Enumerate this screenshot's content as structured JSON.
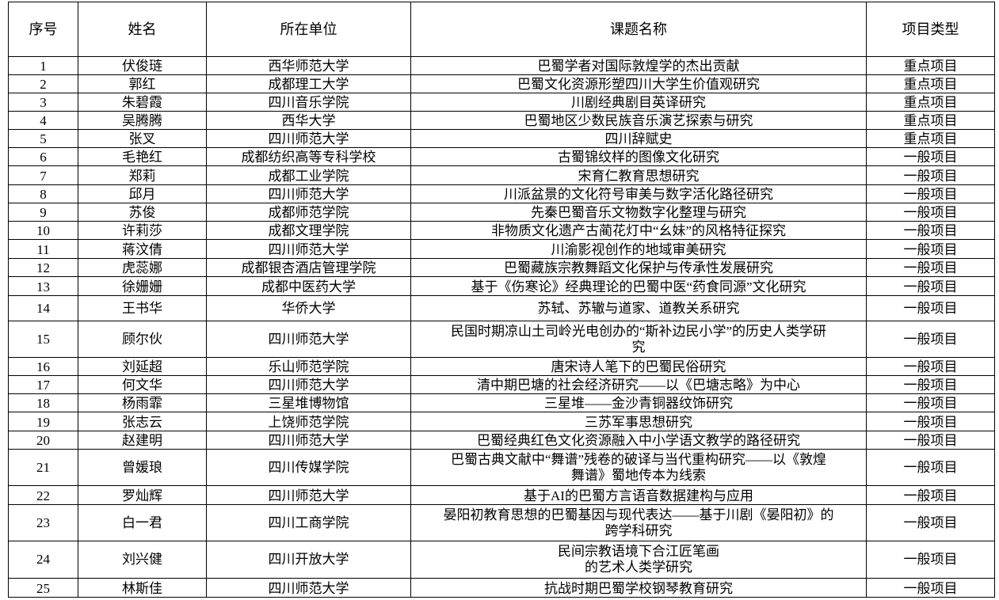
{
  "headers": {
    "no": "序号",
    "name": "姓名",
    "unit": "所在单位",
    "topic": "课题名称",
    "type": "项目类型"
  },
  "rows": [
    {
      "no": "1",
      "name": "伏俊琏",
      "unit": "西华师范大学",
      "topic": "巴蜀学者对国际敦煌学的杰出贡献",
      "type": "重点项目"
    },
    {
      "no": "2",
      "name": "郭红",
      "unit": "成都理工大学",
      "topic": "巴蜀文化资源形塑四川大学生价值观研究",
      "type": "重点项目"
    },
    {
      "no": "3",
      "name": "朱碧霞",
      "unit": "四川音乐学院",
      "topic": "川剧经典剧目英译研究",
      "type": "重点项目"
    },
    {
      "no": "4",
      "name": "吴腾腾",
      "unit": "西华大学",
      "topic": "巴蜀地区少数民族音乐演艺探索与研究",
      "type": "重点项目"
    },
    {
      "no": "5",
      "name": "张叉",
      "unit": "四川师范大学",
      "topic": "四川辞赋史",
      "type": "重点项目"
    },
    {
      "no": "6",
      "name": "毛艳红",
      "unit": "成都纺织高等专科学校",
      "topic": "古蜀锦纹样的图像文化研究",
      "type": "一般项目"
    },
    {
      "no": "7",
      "name": "郑莉",
      "unit": "成都工业学院",
      "topic": "宋育仁教育思想研究",
      "type": "一般项目"
    },
    {
      "no": "8",
      "name": "邱月",
      "unit": "四川师范大学",
      "topic": "川派盆景的文化符号审美与数字活化路径研究",
      "type": "一般项目"
    },
    {
      "no": "9",
      "name": "苏俊",
      "unit": "成都师范学院",
      "topic": "先秦巴蜀音乐文物数字化整理与研究",
      "type": "一般项目"
    },
    {
      "no": "10",
      "name": "许莉莎",
      "unit": "成都文理学院",
      "topic": "非物质文化遗产古蔺花灯中“幺妹”的风格特征探究",
      "type": "一般项目"
    },
    {
      "no": "11",
      "name": "蒋汶倩",
      "unit": "四川师范大学",
      "topic": "川渝影视创作的地域审美研究",
      "type": "一般项目"
    },
    {
      "no": "12",
      "name": "虎蕊娜",
      "unit": "成都银杏酒店管理学院",
      "topic": "巴蜀藏族宗教舞蹈文化保护与传承性发展研究",
      "type": "一般项目"
    },
    {
      "no": "13",
      "name": "徐姗姗",
      "unit": "成都中医药大学",
      "topic": "基于《伤寒论》经典理论的巴蜀中医“药食同源”文化研究",
      "type": "一般项目"
    },
    {
      "no": "14",
      "name": "王书华",
      "unit": "华侨大学",
      "topic": "苏轼、苏辙与道家、道教关系研究",
      "type": "一般项目"
    },
    {
      "no": "15",
      "name": "顾尔伙",
      "unit": "四川师范大学",
      "topic": "民国时期凉山土司岭光电创办的“斯补边民小学”的历史人类学研\n究",
      "type": "一般项目"
    },
    {
      "no": "16",
      "name": "刘延超",
      "unit": "乐山师范学院",
      "topic": "唐宋诗人笔下的巴蜀民俗研究",
      "type": "一般项目"
    },
    {
      "no": "17",
      "name": "何文华",
      "unit": "四川师范大学",
      "topic": "清中期巴塘的社会经济研究——以《巴塘志略》为中心",
      "type": "一般项目"
    },
    {
      "no": "18",
      "name": "杨雨霏",
      "unit": "三星堆博物馆",
      "topic": "三星堆——金沙青铜器纹饰研究",
      "type": "一般项目"
    },
    {
      "no": "19",
      "name": "张志云",
      "unit": "上饶师范学院",
      "topic": "三苏军事思想研究",
      "type": "一般项目"
    },
    {
      "no": "20",
      "name": "赵建明",
      "unit": "四川师范大学",
      "topic": "巴蜀经典红色文化资源融入中小学语文教学的路径研究",
      "type": "一般项目"
    },
    {
      "no": "21",
      "name": "曾媛琅",
      "unit": "四川传媒学院",
      "topic": "巴蜀古典文献中“舞谱”残卷的破译与当代重构研究——以《敦煌\n舞谱》蜀地传本为线索",
      "type": "一般项目"
    },
    {
      "no": "22",
      "name": "罗灿辉",
      "unit": "四川师范大学",
      "topic": "基于AI的巴蜀方言语音数据建构与应用",
      "type": "一般项目"
    },
    {
      "no": "23",
      "name": "白一君",
      "unit": "四川工商学院",
      "topic": "晏阳初教育思想的巴蜀基因与现代表达——基于川剧《晏阳初》的\n跨学科研究",
      "type": "一般项目"
    },
    {
      "no": "24",
      "name": "刘兴健",
      "unit": "四川开放大学",
      "topic": "民间宗教语境下合江匠笔画\n的艺术人类学研究",
      "type": "一般项目"
    },
    {
      "no": "25",
      "name": "林斯佳",
      "unit": "四川师范大学",
      "topic": "抗战时期巴蜀学校钢琴教育研究",
      "type": "一般项目"
    }
  ]
}
